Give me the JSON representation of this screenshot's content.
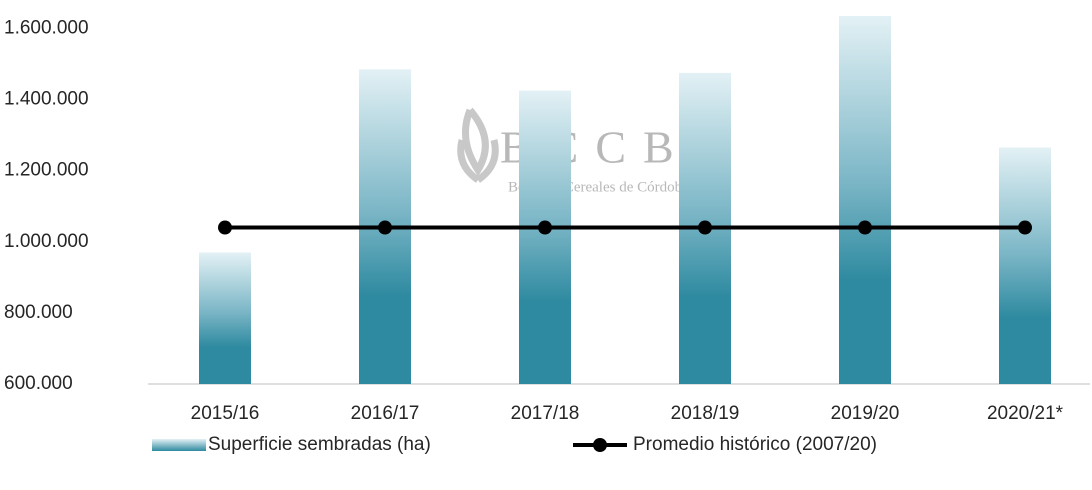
{
  "chart_data": {
    "type": "bar_line",
    "categories": [
      "2015/16",
      "2016/17",
      "2017/18",
      "2018/19",
      "2019/20",
      "2020/21*"
    ],
    "series": [
      {
        "name": "Superficie sembradas (ha)",
        "type": "bar",
        "color": "#2e8aa0",
        "values": [
          970000,
          1485000,
          1425000,
          1475000,
          1635000,
          1265000
        ]
      },
      {
        "name": "Promedio histórico (2007/20)",
        "type": "line",
        "color": "#000000",
        "values": [
          1040000,
          1040000,
          1040000,
          1040000,
          1040000,
          1040000
        ]
      }
    ],
    "ylim": [
      600000,
      1680000
    ],
    "yticks": [
      {
        "value": 600000,
        "label": "600.000"
      },
      {
        "value": 800000,
        "label": "800.000"
      },
      {
        "value": 1000000,
        "label": "1.000.000"
      },
      {
        "value": 1200000,
        "label": "1.200.000"
      },
      {
        "value": 1400000,
        "label": "1.400.000"
      },
      {
        "value": 1600000,
        "label": "1.600.000"
      }
    ],
    "legend": "bottom",
    "watermark": {
      "title": "BCCBA",
      "subtitle": "Bolsa de Cereales de Córdoba"
    }
  }
}
